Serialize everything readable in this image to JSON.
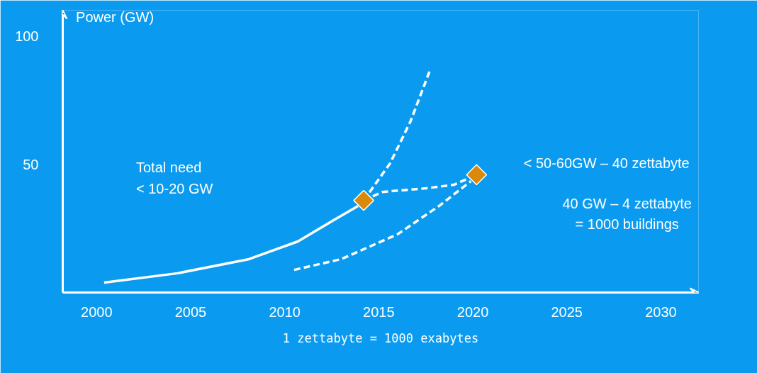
{
  "chart_data": {
    "type": "line",
    "ylabel": "Power (GW)",
    "xlim": [
      1998.2,
      2032
    ],
    "ylim": [
      0,
      110
    ],
    "xticks": [
      2000,
      2005,
      2010,
      2015,
      2020,
      2025,
      2030
    ],
    "yticks": [
      50,
      100
    ],
    "grid": false,
    "series": [
      {
        "color": "#ffffff",
        "line_style": "solid",
        "x": [
          2000.4,
          2004.3,
          2008.1,
          2010.7,
          2012.6,
          2013.9
        ],
        "values": [
          3.9,
          7.5,
          13,
          19.9,
          28.2,
          33.7
        ]
      },
      {
        "color": "#ffffff",
        "line_style": "dashed",
        "x": [
          2014.2,
          2015.6,
          2016.7,
          2017.7
        ],
        "values": [
          35.9,
          50.3,
          66.9,
          86.2
        ]
      },
      {
        "color": "#ffffff",
        "line_style": "dashed",
        "x": [
          2014.2,
          2015.2,
          2017.5,
          2019,
          2020.2
        ],
        "values": [
          35.9,
          39.2,
          40.6,
          42,
          45.9
        ]
      },
      {
        "color": "#ffffff",
        "line_style": "dashed",
        "x": [
          2010.5,
          2013,
          2016,
          2018.2,
          2019.9
        ],
        "values": [
          8.8,
          13,
          22.7,
          33.7,
          43.4
        ]
      },
      {
        "type": "scatter",
        "marker": "diamond",
        "color": "#d98a0b",
        "x": [
          2014.2,
          2020.2
        ],
        "values": [
          35.9,
          45.9
        ]
      }
    ],
    "annotations": [
      "Total need\n< 10-20 GW",
      "< 50-60GW – 40 zettabyte",
      "40 GW – 4 zettabyte\n= 1000 buildings",
      "1 zettabyte = 1000 exabytes"
    ]
  }
}
